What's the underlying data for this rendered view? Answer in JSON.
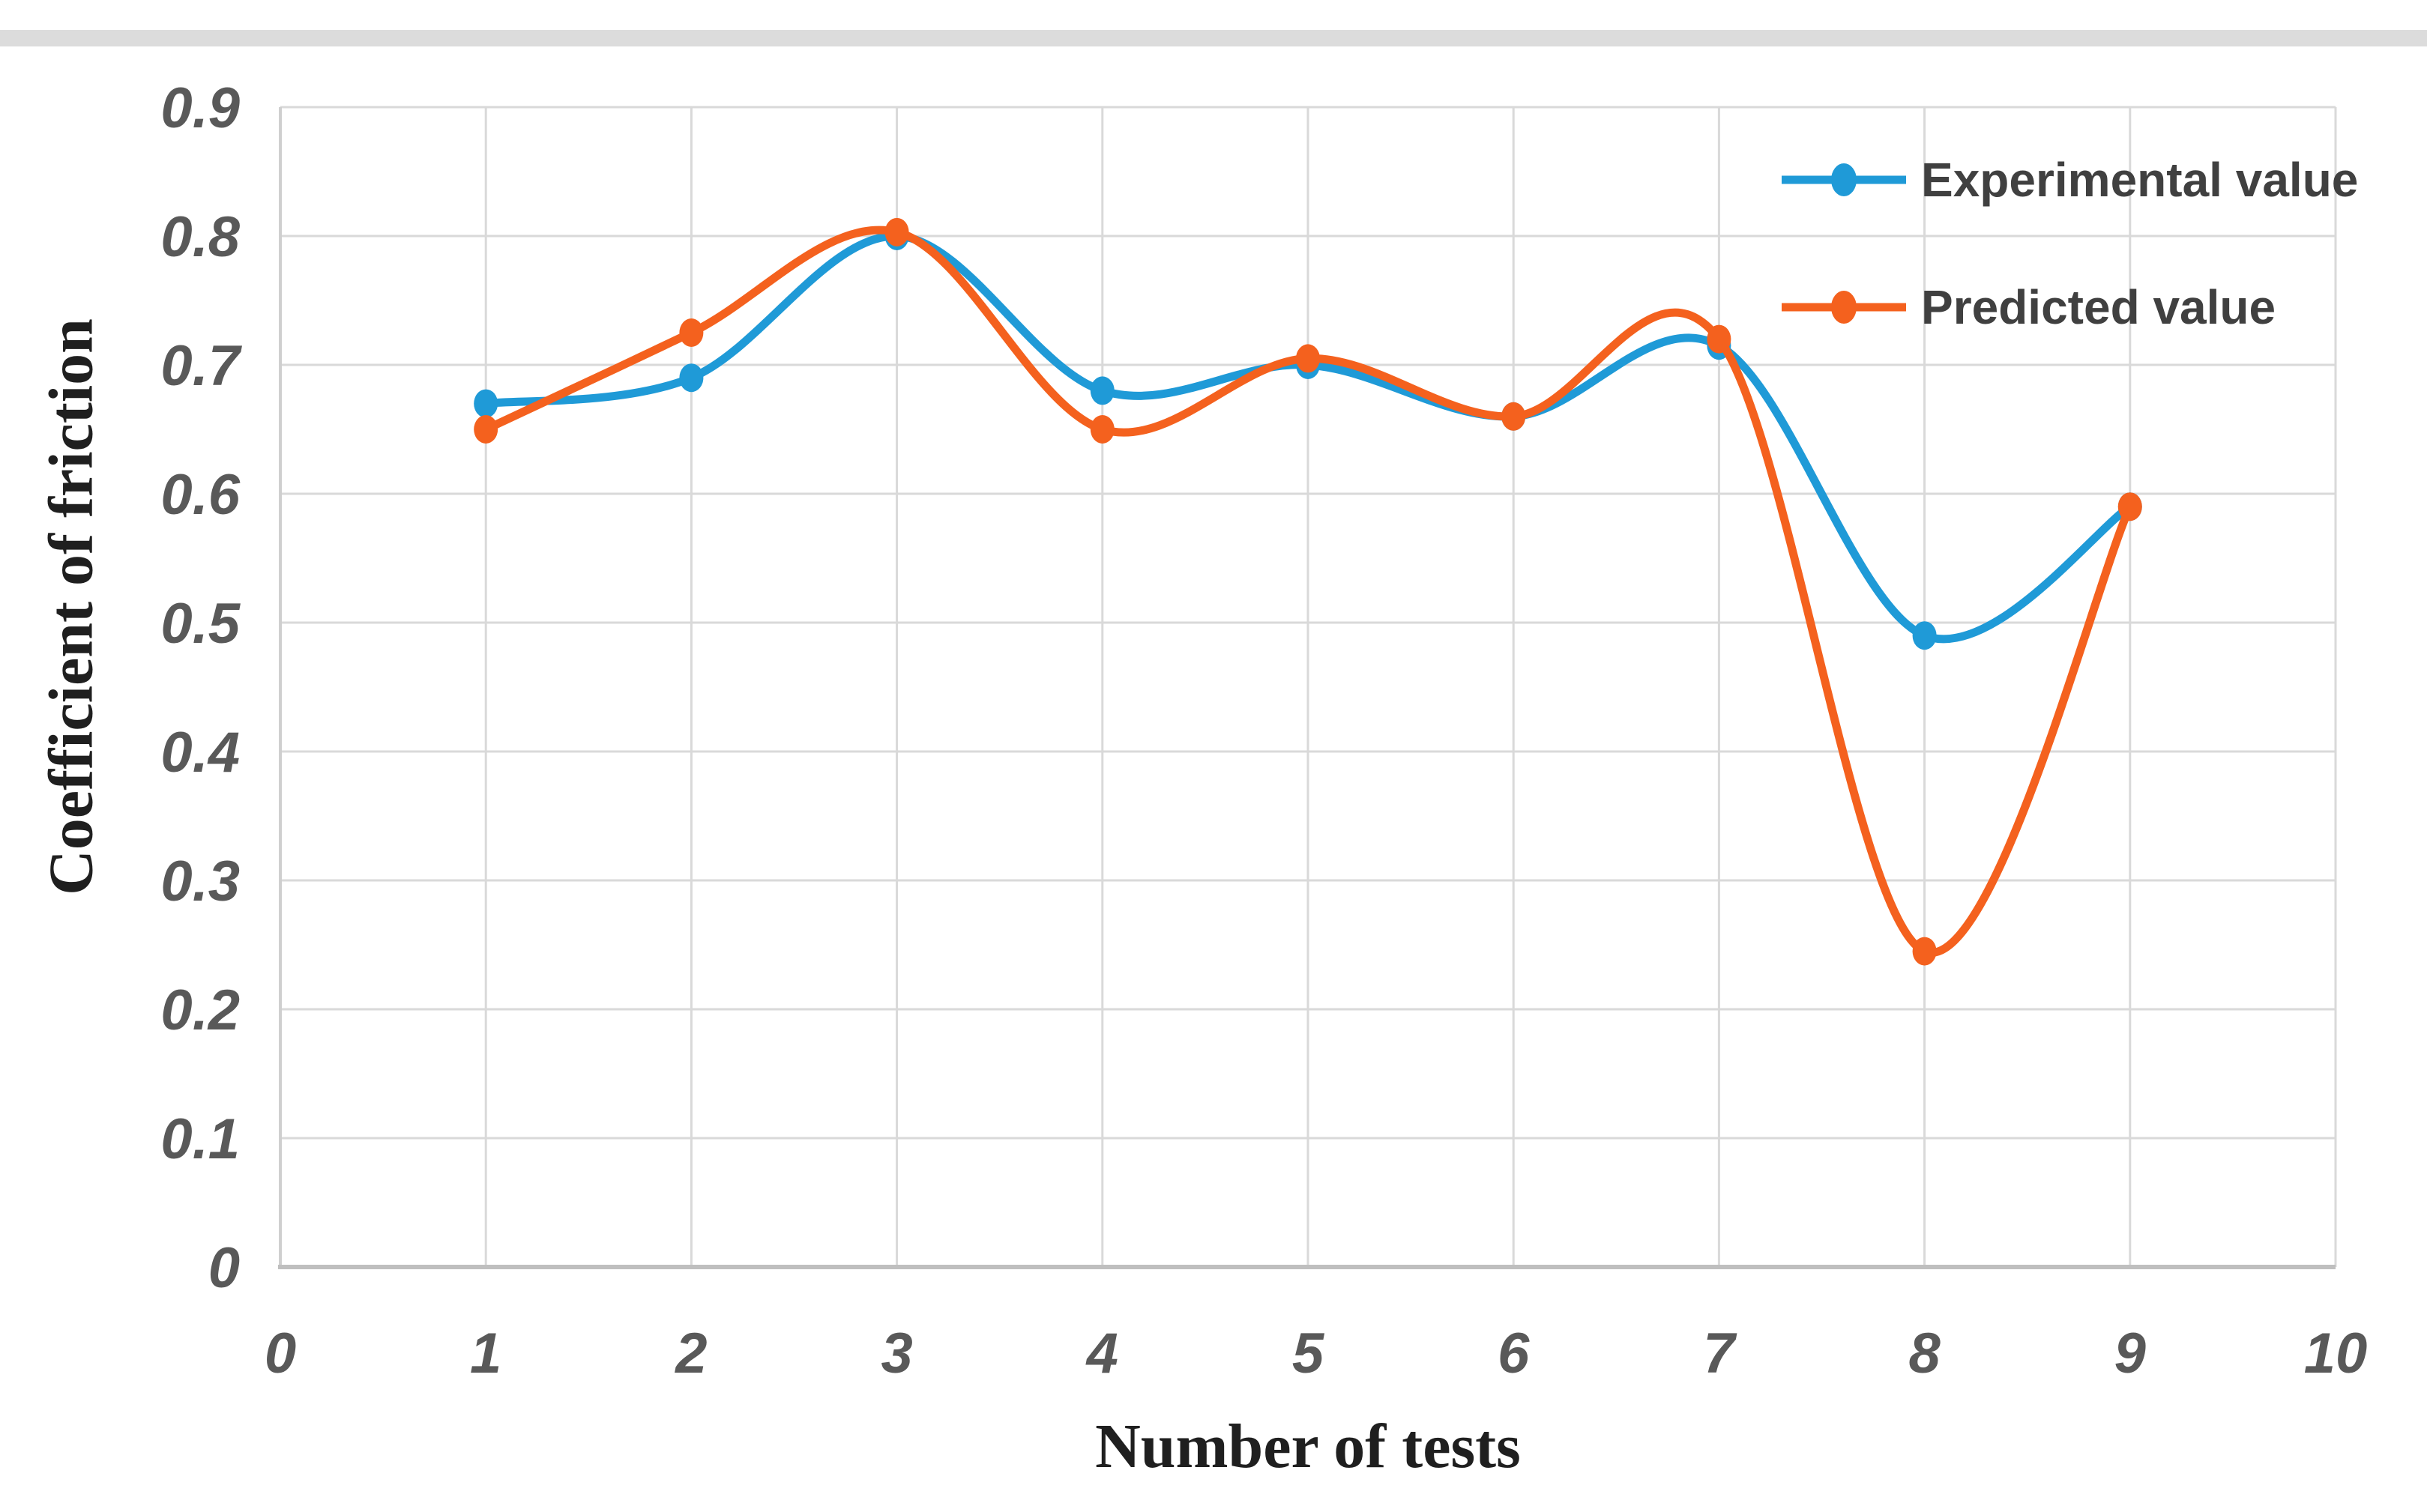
{
  "page": {
    "background": "#ffffff",
    "top_bar_color": "#dcdcdc"
  },
  "chart_data": {
    "type": "line",
    "smooth": true,
    "grid": true,
    "legend_position": "top-right",
    "x": [
      1,
      2,
      3,
      4,
      5,
      6,
      7,
      8,
      9
    ],
    "x_axis": {
      "title": "Number of tests",
      "range": [
        0,
        10
      ],
      "ticks": [
        "0",
        "1",
        "2",
        "3",
        "4",
        "5",
        "6",
        "7",
        "8",
        "9",
        "10"
      ]
    },
    "y_axis": {
      "title": "Coefficient of friction",
      "range": [
        0,
        0.9
      ],
      "ticks": [
        "0",
        "0.1",
        "0.2",
        "0.3",
        "0.4",
        "0.5",
        "0.6",
        "0.7",
        "0.8",
        "0.9"
      ]
    },
    "series": [
      {
        "name": "Experimental value",
        "color": "#1f9ad7",
        "values": [
          0.67,
          0.69,
          0.8,
          0.68,
          0.7,
          0.66,
          0.715,
          0.49,
          0.59
        ]
      },
      {
        "name": "Predicted value",
        "color": "#f4611e",
        "values": [
          0.65,
          0.725,
          0.803,
          0.65,
          0.705,
          0.66,
          0.72,
          0.245,
          0.59
        ]
      }
    ]
  },
  "styles": {
    "grid_color": "#d9d9d9",
    "left_axis_color": "#cfcfcf",
    "bottom_axis_color": "#bfbfbf",
    "tick_color": "#595959",
    "title_color": "#1f1f1f",
    "legend_text_color": "#404040"
  }
}
